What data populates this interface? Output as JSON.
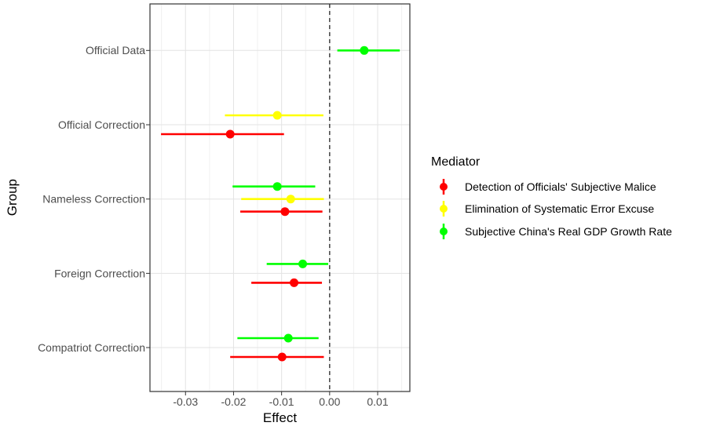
{
  "figure": {
    "background": "#FFFFFF"
  },
  "panel": {
    "border_color": "#333333",
    "grid_major_color": "#E3E3E3",
    "grid_minor_color": "#F0F0F0",
    "zero_line_color": "#4D4D4D",
    "axis_text_color": "#4D4D4D"
  },
  "colors": {
    "red": "#FF0000",
    "yellow": "#FFFF00",
    "green": "#00FF00"
  },
  "legend": {
    "title": "Mediator",
    "items": [
      {
        "label": "Detection of Officials' Subjective Malice",
        "color_key": "red"
      },
      {
        "label": "Elimination of Systematic Error Excuse",
        "color_key": "yellow"
      },
      {
        "label": "Subjective China's Real GDP Growth Rate",
        "color_key": "green"
      }
    ]
  },
  "chart_data": {
    "type": "pointrange_forest",
    "title": "",
    "xlabel": "Effect",
    "ylabel": "Group",
    "xlim": [
      -0.0374,
      0.0167
    ],
    "x_ticks": [
      -0.03,
      -0.02,
      -0.01,
      0,
      0.01
    ],
    "x_tick_labels": [
      "-0.03",
      "-0.02",
      "-0.01",
      "0.00",
      "0.01"
    ],
    "x_minor_ticks": [
      -0.035,
      -0.025,
      -0.015,
      -0.005,
      0.005,
      0.015
    ],
    "zero_reference_line": 0,
    "grid": true,
    "legend_position": "right",
    "categories": [
      "Official Data",
      "Official Correction",
      "Nameless Correction",
      "Foreign Correction",
      "Compatriot Correction"
    ],
    "groups": [
      {
        "label": "Official Data",
        "entries": [
          {
            "mediator": "Subjective China's Real GDP Growth Rate",
            "color_key": "green",
            "estimate": 0.0072,
            "lower": 0.0016,
            "upper": 0.0146
          }
        ]
      },
      {
        "label": "Official Correction",
        "entries": [
          {
            "mediator": "Elimination of Systematic Error Excuse",
            "color_key": "yellow",
            "estimate": -0.0109,
            "lower": -0.0218,
            "upper": -0.0013
          },
          {
            "mediator": "Detection of Officials' Subjective Malice",
            "color_key": "red",
            "estimate": -0.0207,
            "lower": -0.0351,
            "upper": -0.0095
          }
        ]
      },
      {
        "label": "Nameless Correction",
        "entries": [
          {
            "mediator": "Subjective China's Real GDP Growth Rate",
            "color_key": "green",
            "estimate": -0.0109,
            "lower": -0.0202,
            "upper": -0.003
          },
          {
            "mediator": "Elimination of Systematic Error Excuse",
            "color_key": "yellow",
            "estimate": -0.0081,
            "lower": -0.0184,
            "upper": -0.0012
          },
          {
            "mediator": "Detection of Officials' Subjective Malice",
            "color_key": "red",
            "estimate": -0.0093,
            "lower": -0.0186,
            "upper": -0.0015
          }
        ]
      },
      {
        "label": "Foreign Correction",
        "entries": [
          {
            "mediator": "Subjective China's Real GDP Growth Rate",
            "color_key": "green",
            "estimate": -0.0056,
            "lower": -0.0131,
            "upper": -0.0003
          },
          {
            "mediator": "Detection of Officials' Subjective Malice",
            "color_key": "red",
            "estimate": -0.0074,
            "lower": -0.0163,
            "upper": -0.0016
          }
        ]
      },
      {
        "label": "Compatriot Correction",
        "entries": [
          {
            "mediator": "Subjective China's Real GDP Growth Rate",
            "color_key": "green",
            "estimate": -0.0086,
            "lower": -0.0192,
            "upper": -0.0023
          },
          {
            "mediator": "Detection of Officials' Subjective Malice",
            "color_key": "red",
            "estimate": -0.0099,
            "lower": -0.0207,
            "upper": -0.0012
          }
        ]
      }
    ]
  }
}
